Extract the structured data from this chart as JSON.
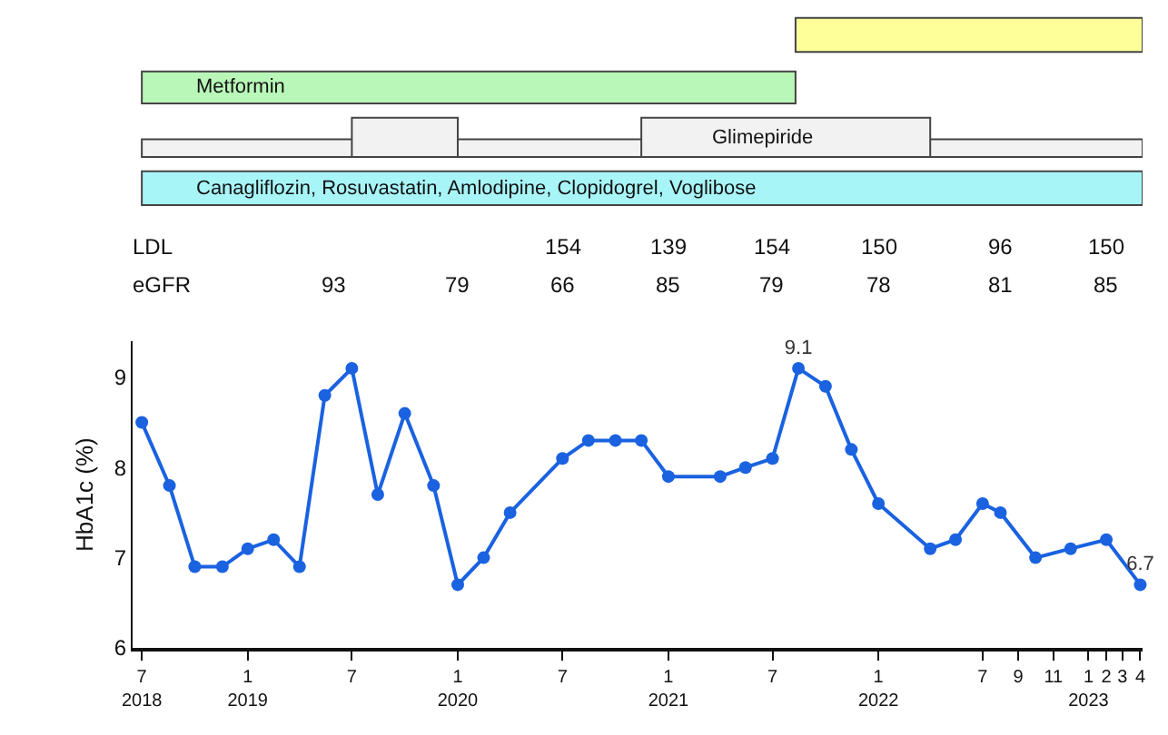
{
  "chart_data": {
    "type": "line",
    "ylabel": "HbA1c (%)",
    "x": [
      "2018-07-01",
      "2018-08-18",
      "2018-10-01",
      "2018-11-18",
      "2019-01-01",
      "2019-02-15",
      "2019-04-01",
      "2019-05-15",
      "2019-07-01",
      "2019-08-15",
      "2019-10-01",
      "2019-11-20",
      "2020-01-01",
      "2020-02-15",
      "2020-04-01",
      "2020-07-01",
      "2020-08-15",
      "2020-10-01",
      "2020-11-15",
      "2021-01-01",
      "2021-04-01",
      "2021-05-15",
      "2021-07-01",
      "2021-08-15",
      "2021-10-01",
      "2021-11-15",
      "2022-01-01",
      "2022-04-01",
      "2022-05-15",
      "2022-07-01",
      "2022-08-01",
      "2022-10-01",
      "2022-12-01",
      "2023-02-01",
      "2023-04-01"
    ],
    "series": [
      {
        "color": "#1a62e0",
        "values": [
          8.5,
          7.8,
          6.9,
          6.9,
          7.1,
          7.2,
          6.9,
          8.8,
          9.1,
          7.7,
          8.6,
          7.8,
          6.7,
          7.0,
          7.5,
          8.1,
          8.3,
          8.3,
          8.3,
          7.9,
          7.9,
          8.0,
          8.1,
          9.1,
          8.9,
          8.2,
          7.6,
          7.1,
          7.2,
          7.6,
          7.5,
          7.0,
          7.1,
          7.2,
          6.7
        ],
        "value_labels": [
          null,
          null,
          null,
          null,
          null,
          null,
          null,
          null,
          null,
          null,
          null,
          null,
          null,
          null,
          null,
          null,
          null,
          null,
          null,
          null,
          null,
          null,
          null,
          "9.1",
          null,
          null,
          null,
          null,
          null,
          null,
          null,
          null,
          null,
          null,
          "6.7"
        ]
      }
    ],
    "marker": "circle",
    "line_style": "solid",
    "grid": false,
    "xlim": [
      "2018-06-15",
      "2023-04-05"
    ],
    "xticks": [
      {
        "value": "2018-07-01",
        "label": "7\n2018"
      },
      {
        "value": "2019-01-01",
        "label": "1\n2019"
      },
      {
        "value": "2019-07-01",
        "label": "7"
      },
      {
        "value": "2020-01-01",
        "label": "1\n2020"
      },
      {
        "value": "2020-07-01",
        "label": "7"
      },
      {
        "value": "2021-01-01",
        "label": "1\n2021"
      },
      {
        "value": "2021-07-01",
        "label": "7"
      },
      {
        "value": "2022-01-01",
        "label": "1\n2022"
      },
      {
        "value": "2022-07-01",
        "label": "7"
      },
      {
        "value": "2022-09-01",
        "label": "9"
      },
      {
        "value": "2022-11-01",
        "label": "11"
      },
      {
        "value": "2023-01-01",
        "label": "1\n2023"
      },
      {
        "value": "2023-02-01",
        "label": "2"
      },
      {
        "value": "2023-03-01",
        "label": "3"
      },
      {
        "value": "2023-04-01",
        "label": "4"
      }
    ],
    "ylim": [
      6,
      9.4
    ],
    "yticks": [
      6,
      7,
      8,
      9
    ],
    "annotations": [
      "Metformin",
      "Glimepiride",
      "Canagliflozin, Rosuvastatin, Amlodipine, Clopidogrel, Voglibose",
      "LDL",
      "154",
      "139",
      "154",
      "150",
      "96",
      "150",
      "eGFR",
      "93",
      "79",
      "66",
      "85",
      "79",
      "78",
      "81",
      "85"
    ]
  }
}
